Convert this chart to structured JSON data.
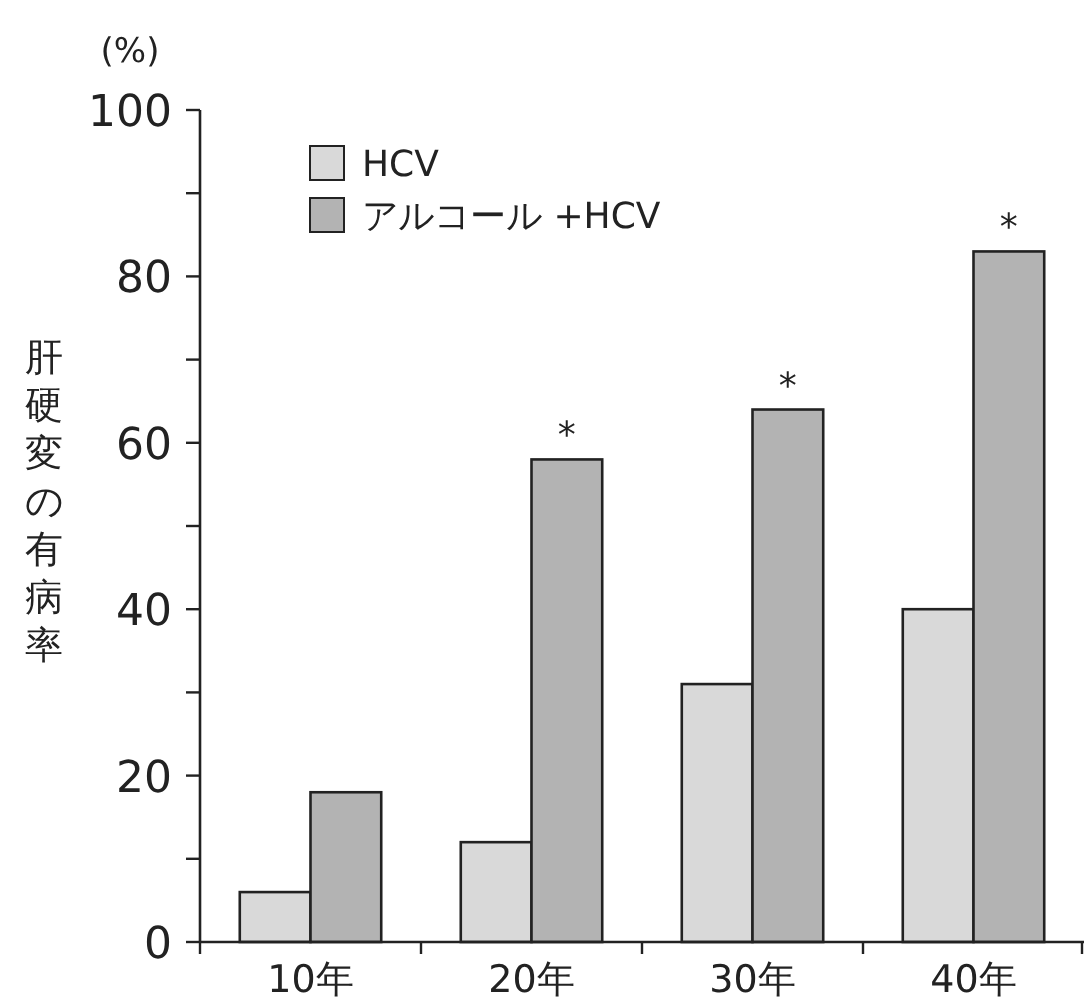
{
  "chart_data": {
    "type": "bar",
    "ylabel": "肝硬変の有病率",
    "categories": [
      "10年",
      "20年",
      "30年",
      "40年"
    ],
    "series": [
      {
        "name": "HCV",
        "color": "#d9d9d9",
        "values": [
          6,
          12,
          31,
          40
        ]
      },
      {
        "name": "アルコール +HCV",
        "color": "#b3b3b3",
        "values": [
          18,
          58,
          64,
          83
        ]
      }
    ],
    "ylim": [
      0,
      100
    ],
    "yticks": [
      0,
      {
        "value": 10,
        "label": null
      },
      20,
      {
        "value": 30,
        "label": null
      },
      40,
      {
        "value": 50,
        "label": null
      },
      60,
      {
        "value": 70,
        "label": null
      },
      80,
      {
        "value": 90,
        "label": null
      },
      100
    ],
    "legend": "top left",
    "annotations": [
      "(%)",
      {
        "text": "*",
        "x": "20年",
        "y": 58
      },
      {
        "text": "*",
        "x": "30年",
        "y": 64
      },
      {
        "text": "*",
        "x": "40年",
        "y": 83
      }
    ]
  }
}
